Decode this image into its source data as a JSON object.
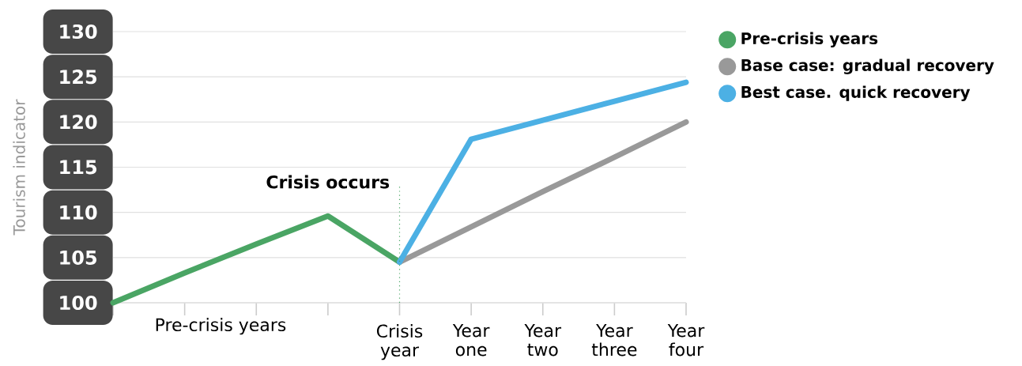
{
  "chart_data": {
    "type": "line",
    "ylabel": "Tourism indicator",
    "categories": [
      null,
      null,
      null,
      null,
      "Crisis year",
      "Year one",
      "Year two",
      "Year three",
      "Year four"
    ],
    "series": [
      {
        "name": "Pre-crisis years",
        "color": "#4aa564",
        "values": [
          100,
          103.3,
          106.5,
          109.6,
          104.5,
          null,
          null,
          null,
          null
        ]
      },
      {
        "name": "Base case: gradual recovery",
        "color": "#999999",
        "values": [
          null,
          null,
          null,
          null,
          104.5,
          108.4,
          112.3,
          116.1,
          120
        ]
      },
      {
        "name": "Best case. quick recovery",
        "color": "#4cb0e4",
        "values": [
          null,
          null,
          null,
          null,
          104.5,
          118.1,
          120.2,
          122.3,
          124.4
        ]
      }
    ],
    "ylim": [
      100,
      130
    ],
    "yticks": [
      100,
      105,
      110,
      115,
      120,
      125,
      130
    ],
    "grid": "y",
    "legend": "top right",
    "marker": "none",
    "line_style": "solid",
    "ref_lines": [
      {
        "axis": "x",
        "value": "Crisis year",
        "label": "Crisis occurs",
        "color": "#4aa564",
        "line_style": "dotted"
      }
    ],
    "annotations": [
      "Pre-crisis years"
    ]
  }
}
